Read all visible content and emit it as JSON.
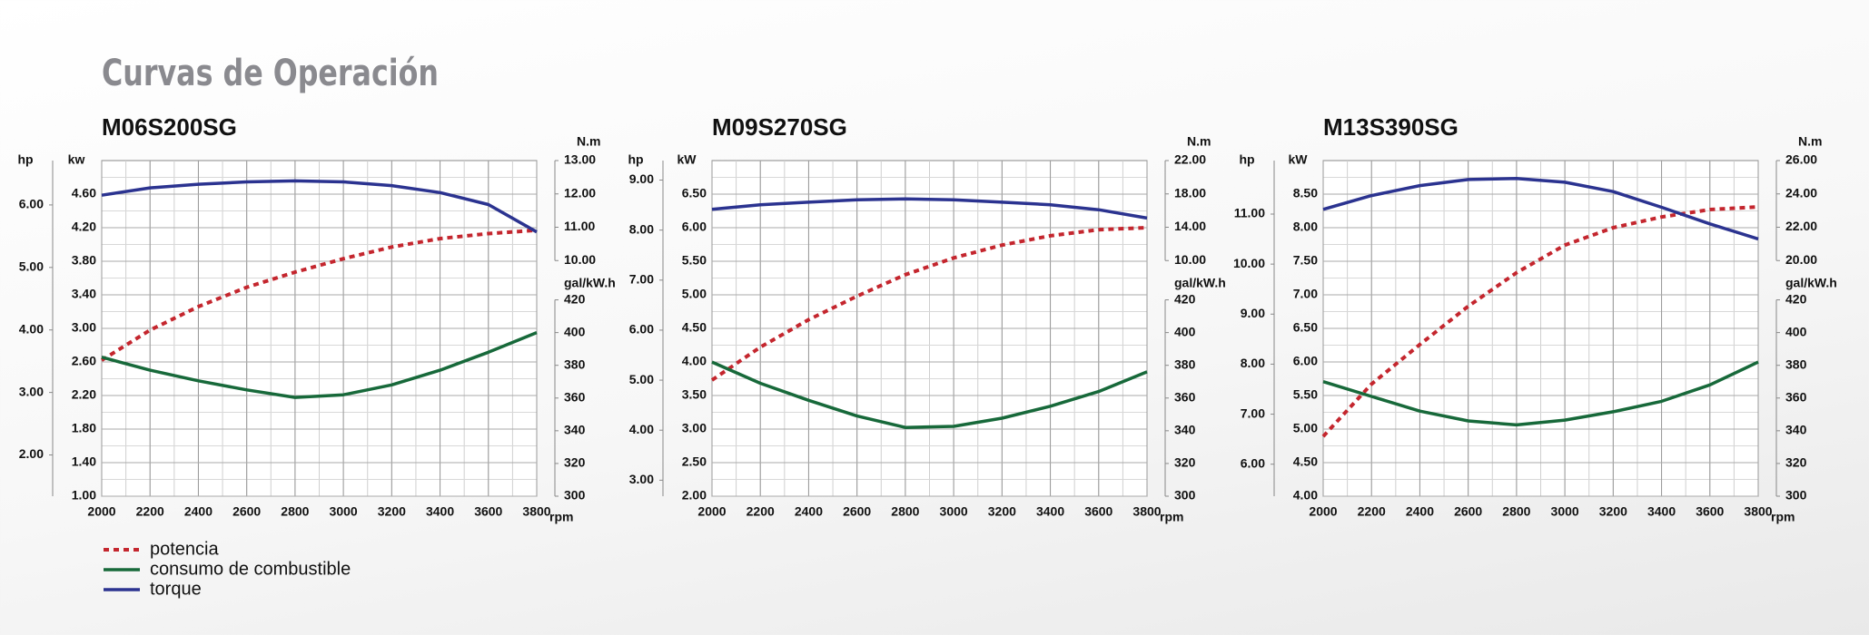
{
  "title": "Curvas de Operación",
  "chart_data": [
    {
      "type": "line",
      "title": "M06S200SG",
      "grid": true,
      "x": [
        2000,
        2200,
        2400,
        2600,
        2800,
        3000,
        3200,
        3400,
        3600,
        3800
      ],
      "xlabel": "rpm",
      "xlim": [
        2000,
        3800
      ],
      "xticks": [
        2000,
        2200,
        2400,
        2600,
        2800,
        3000,
        3200,
        3400,
        3600,
        3800
      ],
      "ylabel": "kw",
      "ylim": [
        1,
        5
      ],
      "yticks": [
        {
          "value": 1,
          "label": "1.00"
        },
        {
          "value": 1.4,
          "label": "1.40"
        },
        {
          "value": 1.8,
          "label": "1.80"
        },
        {
          "value": 2.2,
          "label": "2.20"
        },
        {
          "value": 2.6,
          "label": "2.60"
        },
        {
          "value": 3,
          "label": "3.00"
        },
        {
          "value": 3.4,
          "label": "3.40"
        },
        {
          "value": 3.8,
          "label": "3.80"
        },
        {
          "value": 4.2,
          "label": "4.20"
        },
        {
          "value": 4.6,
          "label": "4.60"
        }
      ],
      "hplabel": "hp",
      "hplim": [
        1.34,
        6.71
      ],
      "hpticks": [
        {
          "value": 2,
          "label": "2.00"
        },
        {
          "value": 3,
          "label": "3.00"
        },
        {
          "value": 4,
          "label": "4.00"
        },
        {
          "value": 5,
          "label": "5.00"
        },
        {
          "value": 6,
          "label": "6.00"
        }
      ],
      "y2label": "N.m",
      "y2lim": [
        10,
        13
      ],
      "y2ticks": [
        {
          "value": 10,
          "label": "10.00"
        },
        {
          "value": 11,
          "label": "11.00"
        },
        {
          "value": 12,
          "label": "12.00"
        },
        {
          "value": 13,
          "label": "13.00"
        }
      ],
      "y3label": "gal/kW.h",
      "y3lim": [
        300,
        420
      ],
      "y3ticks": [
        300,
        320,
        340,
        360,
        380,
        400,
        420
      ],
      "series": [
        {
          "name": "potencia",
          "color": "#c4262e",
          "dash": true,
          "values": [
            2.62,
            2.98,
            3.26,
            3.49,
            3.67,
            3.83,
            3.97,
            4.07,
            4.13,
            4.17
          ]
        },
        {
          "name": "consumo de combustible",
          "color": "#17693a",
          "axis": "y3",
          "values": [
            385,
            377,
            370.5,
            365,
            360.4,
            362,
            368,
            377,
            388,
            400
          ]
        },
        {
          "name": "torque",
          "color": "#2b3390",
          "axis": "y2",
          "values": [
            11.96,
            12.18,
            12.29,
            12.36,
            12.39,
            12.36,
            12.25,
            12.04,
            11.68,
            10.86
          ]
        }
      ]
    },
    {
      "type": "line",
      "title": "M09S270SG",
      "grid": true,
      "x": [
        2000,
        2200,
        2400,
        2600,
        2800,
        3000,
        3200,
        3400,
        3600,
        3800
      ],
      "xlabel": "rpm",
      "xlim": [
        2000,
        3800
      ],
      "xticks": [
        2000,
        2200,
        2400,
        2600,
        2800,
        3000,
        3200,
        3400,
        3600,
        3800
      ],
      "ylabel": "kW",
      "ylim": [
        2,
        7
      ],
      "yticks": [
        {
          "value": 2,
          "label": "2.00"
        },
        {
          "value": 2.5,
          "label": "2.50"
        },
        {
          "value": 3,
          "label": "3.00"
        },
        {
          "value": 3.5,
          "label": "3.50"
        },
        {
          "value": 4,
          "label": "4.00"
        },
        {
          "value": 4.5,
          "label": "4.50"
        },
        {
          "value": 5,
          "label": "5.00"
        },
        {
          "value": 5.5,
          "label": "5.50"
        },
        {
          "value": 6,
          "label": "6.00"
        },
        {
          "value": 6.5,
          "label": "6.50"
        }
      ],
      "hplabel": "hp",
      "hplim": [
        2.68,
        9.39
      ],
      "hpticks": [
        {
          "value": 3,
          "label": "3.00"
        },
        {
          "value": 4,
          "label": "4.00"
        },
        {
          "value": 5,
          "label": "5.00"
        },
        {
          "value": 6,
          "label": "6.00"
        },
        {
          "value": 7,
          "label": "7.00"
        },
        {
          "value": 8,
          "label": "8.00"
        },
        {
          "value": 9,
          "label": "9.00"
        }
      ],
      "y2label": "N.m",
      "y2lim": [
        10,
        22
      ],
      "y2ticks": [
        {
          "value": 10,
          "label": "10.00"
        },
        {
          "value": 14,
          "label": "14.00"
        },
        {
          "value": 18,
          "label": "18.00"
        },
        {
          "value": 22,
          "label": "22.00"
        }
      ],
      "y3label": "gal/kW.h",
      "y3lim": [
        300,
        420
      ],
      "y3ticks": [
        300,
        320,
        340,
        360,
        380,
        400,
        420
      ],
      "series": [
        {
          "name": "potencia",
          "color": "#c4262e",
          "dash": true,
          "values": [
            3.73,
            4.22,
            4.63,
            4.98,
            5.3,
            5.55,
            5.74,
            5.88,
            5.97,
            6.0
          ]
        },
        {
          "name": "consumo de combustible",
          "color": "#17693a",
          "axis": "y3",
          "values": [
            382,
            369,
            358.6,
            349,
            342,
            342.7,
            347.7,
            355,
            364,
            376
          ]
        },
        {
          "name": "torque",
          "color": "#2b3390",
          "axis": "y2",
          "values": [
            16.14,
            16.7,
            17.0,
            17.3,
            17.4,
            17.3,
            17.0,
            16.7,
            16.1,
            15.1
          ]
        }
      ]
    },
    {
      "type": "line",
      "title": "M13S390SG",
      "grid": true,
      "x": [
        2000,
        2200,
        2400,
        2600,
        2800,
        3000,
        3200,
        3400,
        3600,
        3800
      ],
      "xlabel": "rpm",
      "xlim": [
        2000,
        3800
      ],
      "xticks": [
        2000,
        2200,
        2400,
        2600,
        2800,
        3000,
        3200,
        3400,
        3600,
        3800
      ],
      "ylabel": "kW",
      "ylim": [
        4,
        9
      ],
      "yticks": [
        {
          "value": 4,
          "label": "4.00"
        },
        {
          "value": 4.5,
          "label": "4.50"
        },
        {
          "value": 5,
          "label": "5.00"
        },
        {
          "value": 5.5,
          "label": "5.50"
        },
        {
          "value": 6,
          "label": "6.00"
        },
        {
          "value": 6.5,
          "label": "6.50"
        },
        {
          "value": 7,
          "label": "7.00"
        },
        {
          "value": 7.5,
          "label": "7.50"
        },
        {
          "value": 8,
          "label": "8.00"
        },
        {
          "value": 8.5,
          "label": "8.50"
        }
      ],
      "hplabel": "hp",
      "hplim": [
        5.36,
        12.07
      ],
      "hpticks": [
        {
          "value": 6,
          "label": "6.00"
        },
        {
          "value": 7,
          "label": "7.00"
        },
        {
          "value": 8,
          "label": "8.00"
        },
        {
          "value": 9,
          "label": "9.00"
        },
        {
          "value": 10,
          "label": "10.00"
        },
        {
          "value": 11,
          "label": "11.00"
        }
      ],
      "y2label": "N.m",
      "y2lim": [
        20,
        26
      ],
      "y2ticks": [
        {
          "value": 20,
          "label": "20.00"
        },
        {
          "value": 22,
          "label": "22.00"
        },
        {
          "value": 24,
          "label": "24.00"
        },
        {
          "value": 26,
          "label": "26.00"
        }
      ],
      "y3label": "gal/kW.h",
      "y3lim": [
        300,
        420
      ],
      "y3ticks": [
        300,
        320,
        340,
        360,
        380,
        400,
        420
      ],
      "series": [
        {
          "name": "potencia",
          "color": "#c4262e",
          "dash": true,
          "values": [
            4.89,
            5.67,
            6.26,
            6.83,
            7.33,
            7.74,
            8.0,
            8.16,
            8.27,
            8.31
          ]
        },
        {
          "name": "consumo de combustible",
          "color": "#17693a",
          "axis": "y3",
          "values": [
            370,
            361,
            352,
            346,
            343.6,
            346.5,
            351.6,
            358,
            368,
            382
          ]
        },
        {
          "name": "torque",
          "color": "#2b3390",
          "axis": "y2",
          "values": [
            23.07,
            23.9,
            24.5,
            24.86,
            24.93,
            24.7,
            24.14,
            23.2,
            22.2,
            21.3
          ]
        }
      ]
    }
  ]
}
